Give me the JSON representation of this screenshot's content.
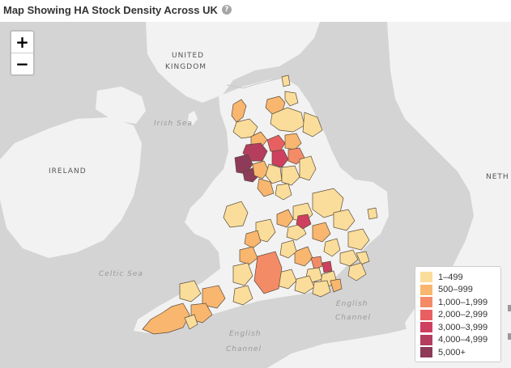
{
  "title": "Map Showing HA Stock Density Across UK",
  "help_icon": "help-circle-icon",
  "zoom": {
    "in_label": "+",
    "out_label": "−"
  },
  "map_labels": {
    "united": "UNITED",
    "kingdom": "KINGDOM",
    "irish_sea": "Irish Sea",
    "ireland": "IRELAND",
    "celtic_sea": "Celtic Sea",
    "english_channel_east_1": "English",
    "english_channel_east_2": "Channel",
    "english_channel_south_1": "English",
    "english_channel_south_2": "Channel",
    "neth": "NETH"
  },
  "legend": [
    {
      "label": "1–499",
      "color": "#fadd9a"
    },
    {
      "label": "500–999",
      "color": "#f8b66e"
    },
    {
      "label": "1,000–1,999",
      "color": "#f48b67"
    },
    {
      "label": "2,000–2,999",
      "color": "#e85f62"
    },
    {
      "label": "3,000–3,999",
      "color": "#cf3f5f"
    },
    {
      "label": "4,000–4,999",
      "color": "#b53d5e"
    },
    {
      "label": "5,000+",
      "color": "#8e3a59"
    }
  ],
  "colors": {
    "sea": "#d4d4d4",
    "land": "#f2f2f2",
    "border": "#5a4a3a"
  }
}
